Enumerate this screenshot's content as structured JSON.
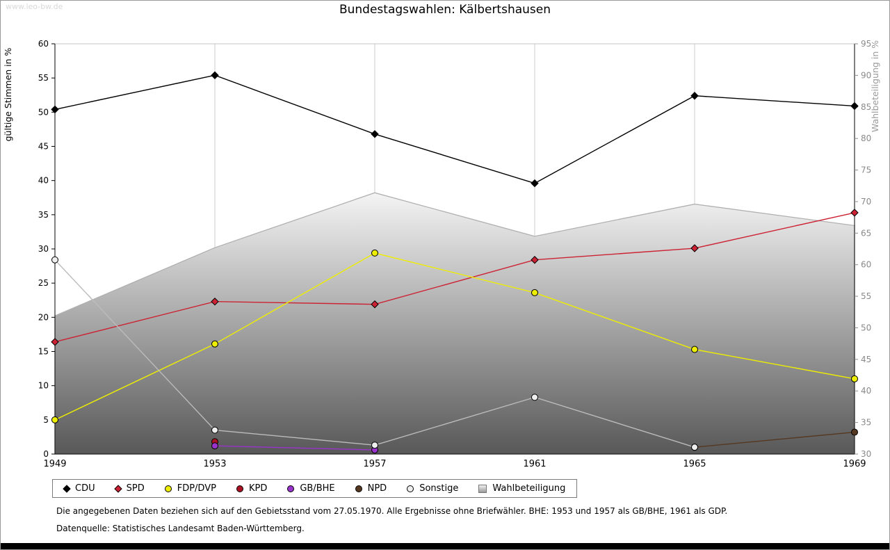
{
  "watermark": "www.leo-bw.de",
  "title": "Bundestagswahlen: Kälbertshausen",
  "footnotes": {
    "line1": "Die angegebenen Daten beziehen sich auf den Gebietsstand vom 27.05.1970. Alle Ergebnisse ohne Briefwähler. BHE: 1953 und 1957 als GB/BHE, 1961 als GDP.",
    "line2": "Datenquelle: Statistisches Landesamt Baden-Württemberg."
  },
  "chart_data": {
    "type": "line",
    "title": "Bundestagswahlen: Kälbertshausen",
    "x": [
      "1949",
      "1953",
      "1957",
      "1961",
      "1965",
      "1969"
    ],
    "left_axis": {
      "label": "gültige Stimmen in %",
      "min": 0,
      "max": 60,
      "step": 5
    },
    "right_axis": {
      "label": "Wahlbeteiligung in %",
      "min": 30,
      "max": 95,
      "step": 5
    },
    "grid": "vertical-only",
    "legend_position": "bottom",
    "series": [
      {
        "name": "CDU",
        "color": "#000000",
        "marker": "diamond",
        "axis": "left",
        "values": [
          50.4,
          55.4,
          46.8,
          39.6,
          52.4,
          50.9
        ]
      },
      {
        "name": "SPD",
        "color": "#cc2233",
        "marker": "diamond",
        "axis": "left",
        "values": [
          16.4,
          22.3,
          21.9,
          28.4,
          30.1,
          35.3
        ]
      },
      {
        "name": "FDP/DVP",
        "color": "#eeee00",
        "marker": "circle",
        "axis": "left",
        "values": [
          5.0,
          16.1,
          29.4,
          23.6,
          15.3,
          11.0
        ]
      },
      {
        "name": "KPD",
        "color": "#aa1122",
        "marker": "circle",
        "axis": "left",
        "values": [
          null,
          1.8,
          null,
          null,
          null,
          null
        ]
      },
      {
        "name": "GB/BHE",
        "color": "#9933cc",
        "marker": "circle",
        "axis": "left",
        "values": [
          null,
          1.2,
          0.6,
          null,
          null,
          null
        ]
      },
      {
        "name": "NPD",
        "color": "#553822",
        "marker": "circle",
        "axis": "left",
        "values": [
          null,
          null,
          null,
          null,
          1.0,
          3.2
        ]
      },
      {
        "name": "Sonstige",
        "color": "#bbbbbb",
        "marker": "circle",
        "marker_fill": "#eeeeee",
        "axis": "left",
        "values": [
          28.4,
          3.5,
          1.3,
          8.3,
          1.0,
          null
        ]
      }
    ],
    "area": {
      "name": "Wahlbeteiligung",
      "axis": "right",
      "values": [
        51.9,
        62.7,
        71.4,
        64.5,
        69.6,
        66.2
      ],
      "fill_top": "#f4f4f4",
      "fill_bottom": "#585858",
      "stroke": "#b0b0b0"
    }
  }
}
